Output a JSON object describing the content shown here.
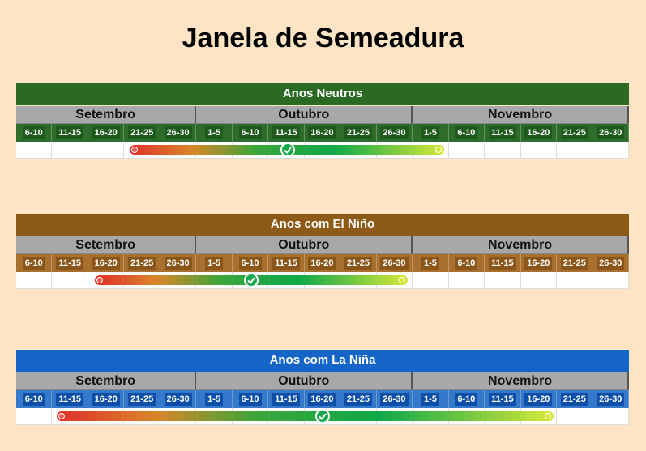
{
  "title": "Janela de Semeadura",
  "panels": [
    {
      "header": "Anos Neutros",
      "months": [
        {
          "name": "Setembro",
          "periods": [
            "6-10",
            "11-15",
            "16-20",
            "21-25",
            "26-30"
          ]
        },
        {
          "name": "Outubro",
          "periods": [
            "1-5",
            "6-10",
            "11-15",
            "16-20",
            "21-25",
            "26-30"
          ]
        },
        {
          "name": "Novembro",
          "periods": [
            "1-5",
            "6-10",
            "11-15",
            "16-20",
            "21-25",
            "26-30"
          ]
        }
      ]
    },
    {
      "header": "Anos com El Niño",
      "months": [
        {
          "name": "Setembro",
          "periods": [
            "6-10",
            "11-15",
            "16-20",
            "21-25",
            "26-30"
          ]
        },
        {
          "name": "Outubro",
          "periods": [
            "1-5",
            "6-10",
            "11-15",
            "16-20",
            "21-25",
            "26-30"
          ]
        },
        {
          "name": "Novembro",
          "periods": [
            "1-5",
            "6-10",
            "11-15",
            "16-20",
            "21-25",
            "26-30"
          ]
        }
      ]
    },
    {
      "header": "Anos com La Niña",
      "months": [
        {
          "name": "Setembro",
          "periods": [
            "6-10",
            "11-15",
            "16-20",
            "21-25",
            "26-30"
          ]
        },
        {
          "name": "Outubro",
          "periods": [
            "1-5",
            "6-10",
            "11-15",
            "16-20",
            "21-25",
            "26-30"
          ]
        },
        {
          "name": "Novembro",
          "periods": [
            "1-5",
            "6-10",
            "11-15",
            "16-20",
            "21-25",
            "26-30"
          ]
        }
      ]
    }
  ]
}
